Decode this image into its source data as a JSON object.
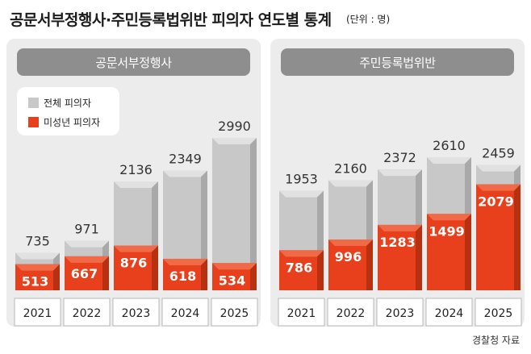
{
  "title": "공문서부정행사·주민등록법위반 피의자 연도별 통계",
  "unit": "(단위 : 명)",
  "source": "경찰청 자료",
  "legend": {
    "total_label": "전체 피의자",
    "minor_label": "미성년 피의자"
  },
  "colors": {
    "total_bar": "#c8c8c8",
    "minor_bar": "#e8401c",
    "panel_bg": "#ececec",
    "header_bg": "#8e8e8e"
  },
  "chart_data": [
    {
      "type": "bar",
      "title": "공문서부정행사",
      "categories": [
        "2021",
        "2022",
        "2023",
        "2024",
        "2025"
      ],
      "series": [
        {
          "name": "전체 피의자",
          "values": [
            735,
            971,
            2136,
            2349,
            2990
          ]
        },
        {
          "name": "미성년 피의자",
          "values": [
            513,
            667,
            876,
            618,
            534
          ]
        }
      ]
    },
    {
      "type": "bar",
      "title": "주민등록법위반",
      "categories": [
        "2021",
        "2022",
        "2023",
        "2024",
        "2025"
      ],
      "series": [
        {
          "name": "전체 피의자",
          "values": [
            1953,
            2160,
            2372,
            2610,
            2459
          ]
        },
        {
          "name": "미성년 피의자",
          "values": [
            786,
            996,
            1283,
            1499,
            2079
          ]
        }
      ]
    }
  ]
}
